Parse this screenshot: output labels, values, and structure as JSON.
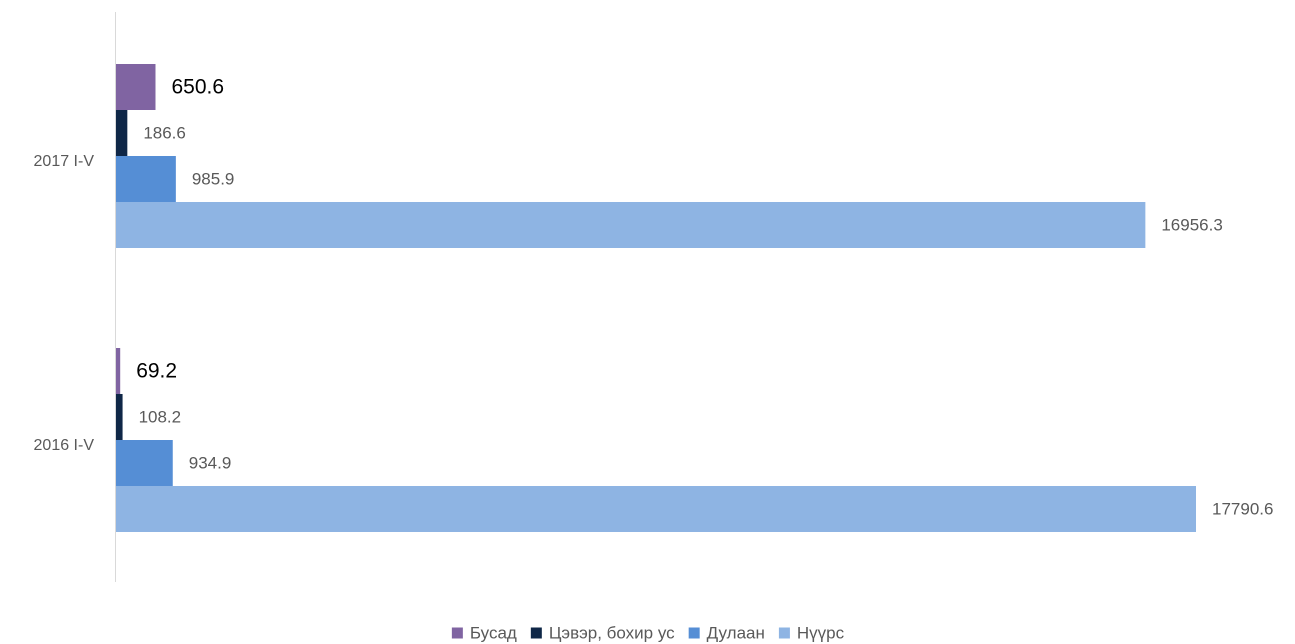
{
  "chart_data": {
    "type": "bar",
    "orientation": "horizontal",
    "categories": [
      "2017 I-V",
      "2016 I-V"
    ],
    "series": [
      {
        "name": "Бусад",
        "color": "#8064A2",
        "values": [
          650.6,
          69.2
        ],
        "labels": [
          "650.6",
          "69.2"
        ],
        "label_emphasis": true
      },
      {
        "name": "Цэвэр, бохир ус",
        "color": "#0F2747",
        "values": [
          186.6,
          108.2
        ],
        "labels": [
          "186.6",
          "108.2"
        ],
        "label_emphasis": false
      },
      {
        "name": "Дулаан",
        "color": "#558ED5",
        "values": [
          985.9,
          934.9
        ],
        "labels": [
          "985.9",
          "934.9"
        ],
        "label_emphasis": false
      },
      {
        "name": "Нүүрс",
        "color": "#8EB4E3",
        "values": [
          16956.3,
          17790.6
        ],
        "labels": [
          "16956.3",
          "17790.6"
        ],
        "label_emphasis": false
      }
    ],
    "xlim": [
      0,
      17790.6
    ],
    "grid": false,
    "legend_position": "bottom",
    "title": "",
    "xlabel": "",
    "ylabel": ""
  }
}
